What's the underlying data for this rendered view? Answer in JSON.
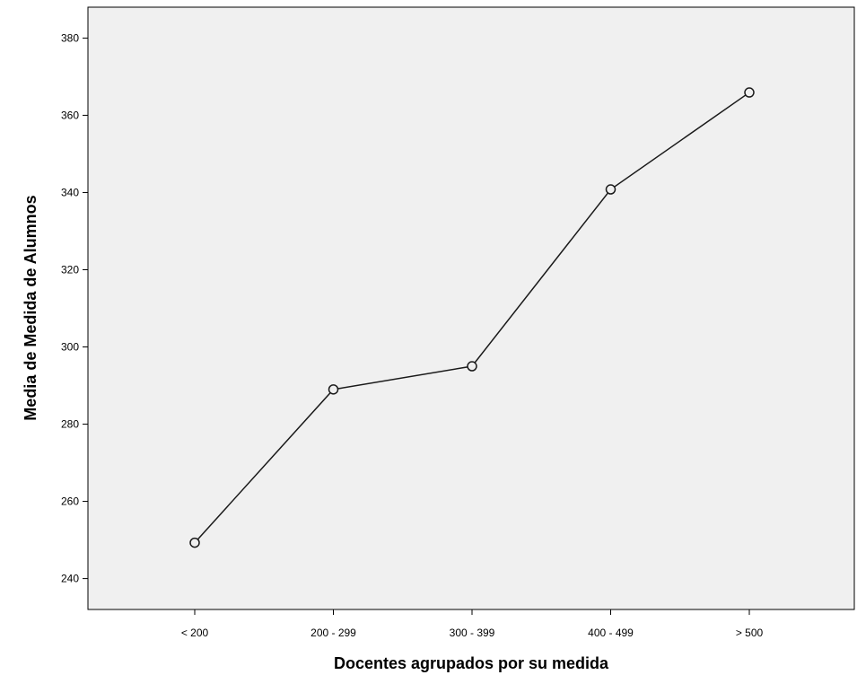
{
  "chart_data": {
    "type": "line",
    "title": "",
    "xlabel": "Docentes agrupados por su medida",
    "ylabel": "Media de Medida de Alumnos",
    "categories": [
      "< 200",
      "200 - 299",
      "300 - 399",
      "400 - 499",
      "> 500"
    ],
    "series": [
      {
        "values": [
          249.3,
          289.0,
          295.0,
          340.8,
          365.9
        ]
      }
    ],
    "ylim": [
      232,
      388
    ],
    "yticks": [
      240,
      260,
      280,
      300,
      320,
      340,
      360,
      380
    ],
    "grid": false,
    "legend": "none",
    "colors": {
      "plot_background": "#f0f0f0",
      "line": "#1a1a1a",
      "marker_fill": "#f0f0f0",
      "axis": "#000000"
    }
  }
}
